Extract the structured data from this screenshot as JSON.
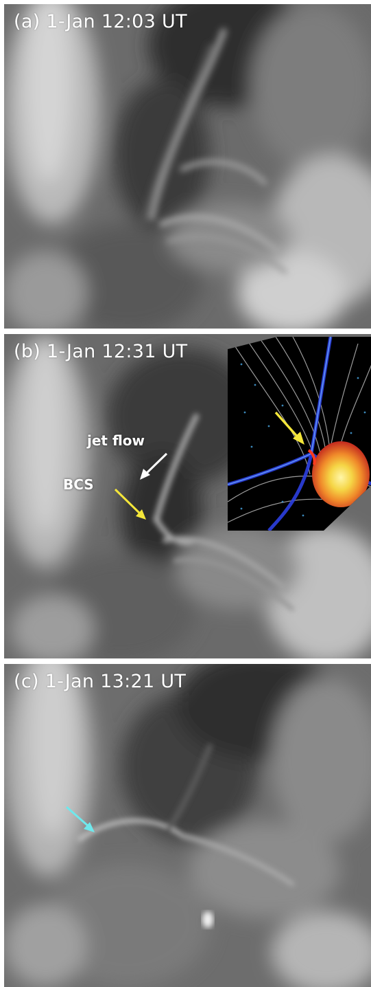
{
  "panels": [
    {
      "label": "(a) 1-Jan 12:03 UT"
    },
    {
      "label": "(b) 1-Jan 12:31 UT",
      "annotations": {
        "jet_flow": "jet flow",
        "bcs": "BCS"
      }
    },
    {
      "label": "(c) 1-Jan 13:21 UT"
    }
  ],
  "colors": {
    "arrow_white": "#ffffff",
    "arrow_yellow": "#f4e63a",
    "arrow_cyan": "#6fe8ec",
    "inset_background": "#000000",
    "inset_field_lines": "#b8b8b8",
    "inset_current_sheet": "#2a3bd8",
    "inset_hot_core": "#f9d648"
  },
  "icons": {
    "panel_b_white_arrow": "arrow-icon",
    "panel_b_yellow_arrow": "arrow-icon",
    "inset_yellow_arrow": "arrow-icon",
    "panel_c_cyan_arrow": "arrow-icon"
  }
}
